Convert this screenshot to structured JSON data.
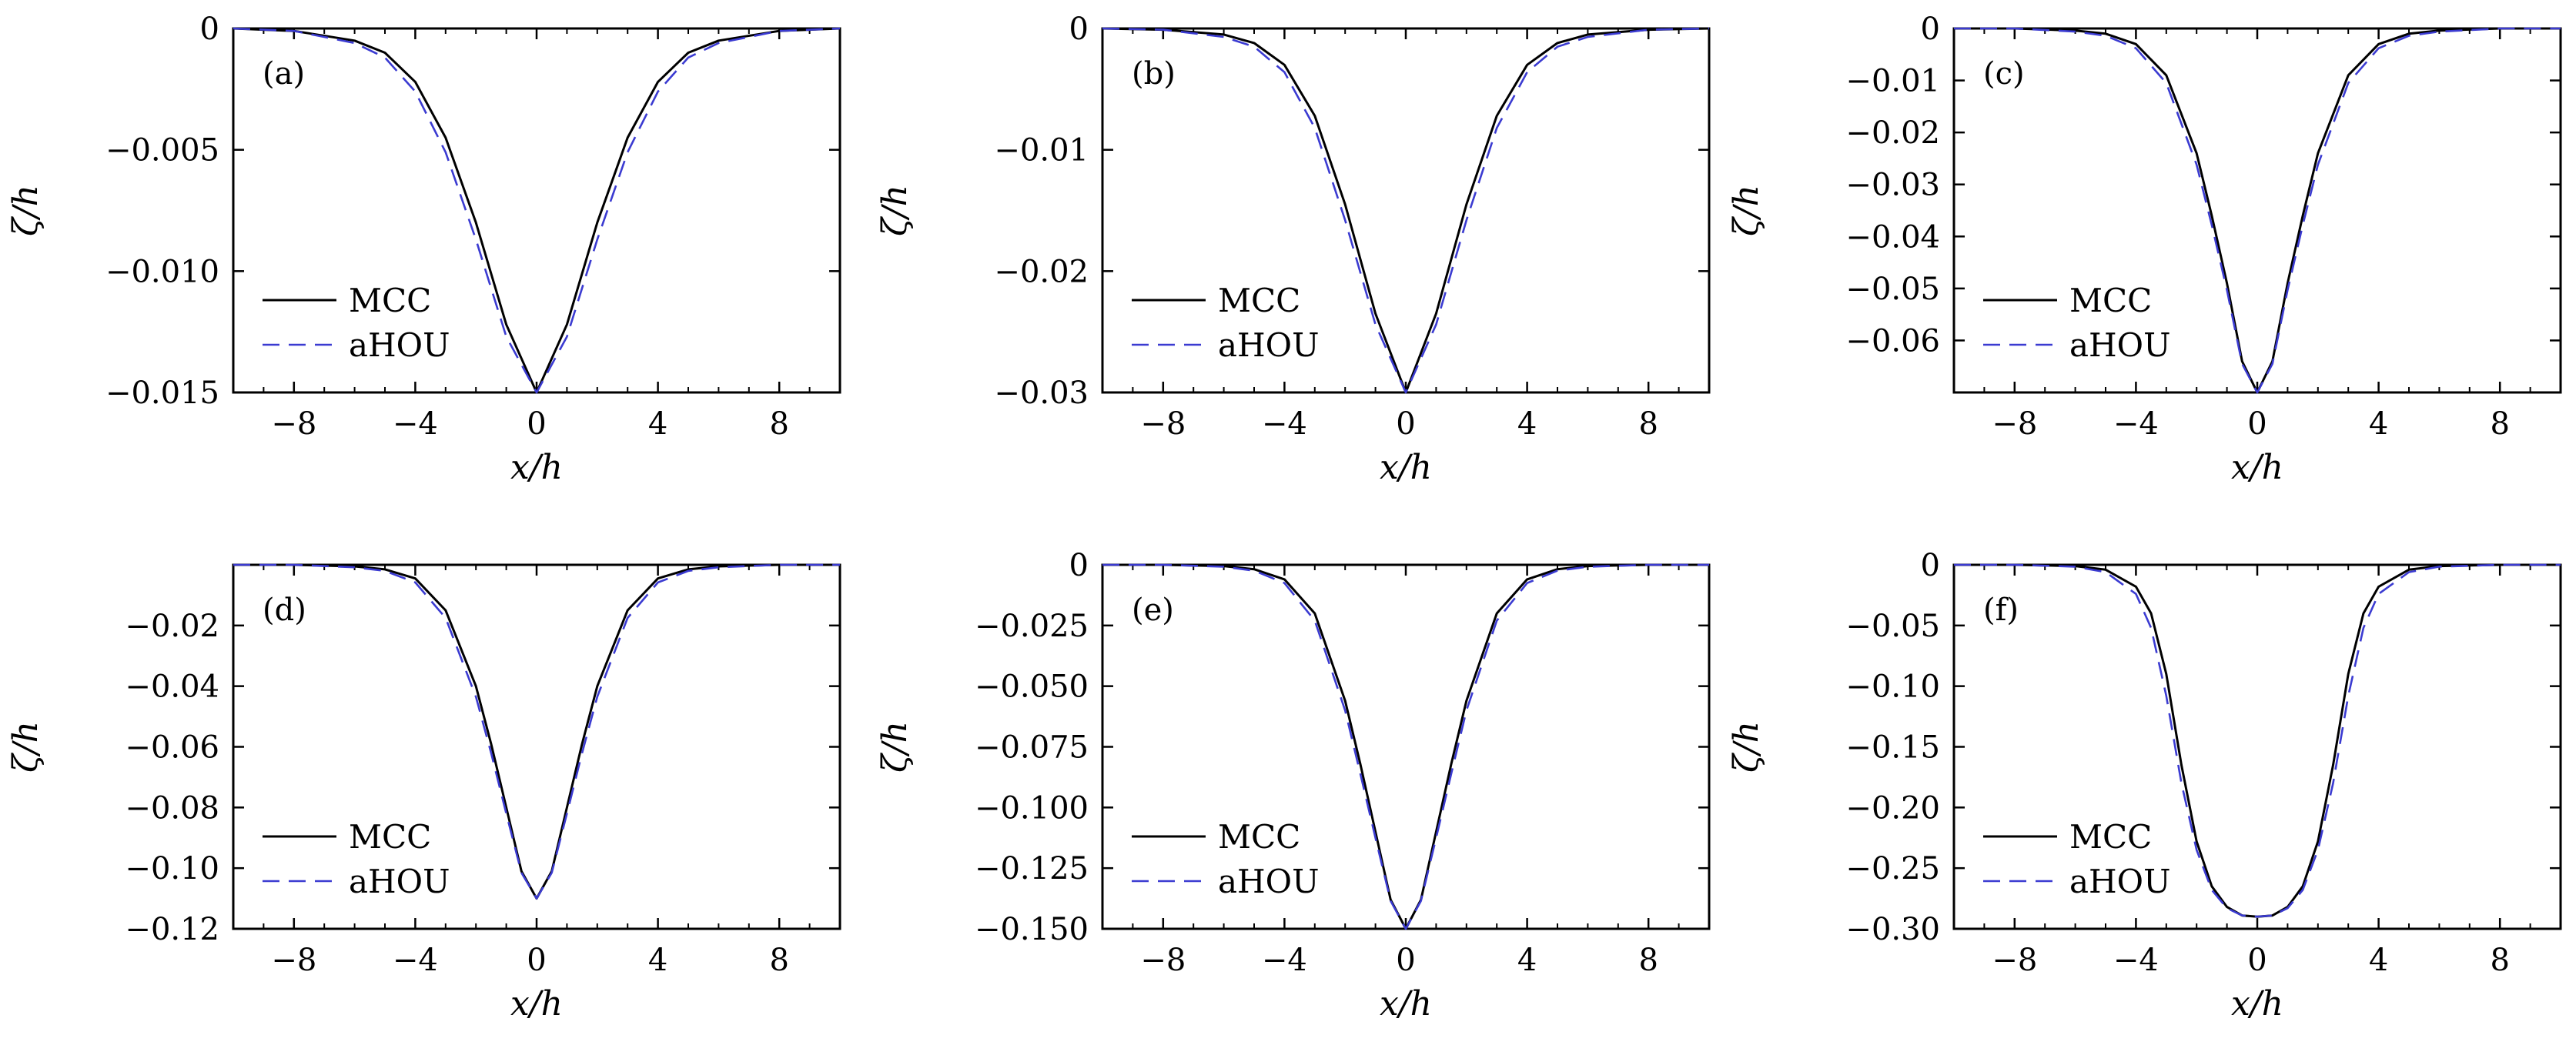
{
  "figure": {
    "legend": {
      "series": [
        {
          "name": "MCC",
          "color": "#000000",
          "dash": "solid"
        },
        {
          "name": "aHOU",
          "color": "#3b3bd1",
          "dash": "dashed"
        }
      ]
    }
  },
  "chart_data": [
    {
      "type": "line",
      "label": "(a)",
      "xlabel": "x/h",
      "ylabel": "ζ/h",
      "xlim": [
        -10,
        10
      ],
      "ylim": [
        -0.015,
        0
      ],
      "xticks": [
        -8,
        -4,
        0,
        4,
        8
      ],
      "xtick_labels": [
        "−8",
        "−4",
        "0",
        "4",
        "8"
      ],
      "yticks": [
        0,
        -0.005,
        -0.01,
        -0.015
      ],
      "ytick_labels": [
        "0",
        "−0.005",
        "−0.010",
        "−0.015"
      ],
      "grid": false,
      "legend_position": "lower-left",
      "series": [
        {
          "name": "MCC",
          "x": [
            -10,
            -8,
            -6,
            -5,
            -4,
            -3,
            -2,
            -1,
            0,
            1,
            2,
            3,
            4,
            5,
            6,
            8,
            10
          ],
          "y": [
            0,
            -0.0001,
            -0.0005,
            -0.001,
            -0.0022,
            -0.0045,
            -0.008,
            -0.0122,
            -0.015,
            -0.0122,
            -0.008,
            -0.0045,
            -0.0022,
            -0.001,
            -0.0005,
            -0.0001,
            0
          ]
        },
        {
          "name": "aHOU",
          "x": [
            -10,
            -8,
            -6,
            -5,
            -4,
            -3,
            -2,
            -1,
            0,
            1,
            2,
            3,
            4,
            5,
            6,
            8,
            10
          ],
          "y": [
            0,
            -0.0001,
            -0.0006,
            -0.0012,
            -0.0026,
            -0.0051,
            -0.0087,
            -0.0127,
            -0.015,
            -0.0127,
            -0.0087,
            -0.0051,
            -0.0026,
            -0.0012,
            -0.0006,
            -0.0001,
            0
          ]
        }
      ]
    },
    {
      "type": "line",
      "label": "(b)",
      "xlabel": "x/h",
      "ylabel": "ζ/h",
      "xlim": [
        -10,
        10
      ],
      "ylim": [
        -0.03,
        0
      ],
      "xticks": [
        -8,
        -4,
        0,
        4,
        8
      ],
      "xtick_labels": [
        "−8",
        "−4",
        "0",
        "4",
        "8"
      ],
      "yticks": [
        0,
        -0.01,
        -0.02,
        -0.03
      ],
      "ytick_labels": [
        "0",
        "−0.01",
        "−0.02",
        "−0.03"
      ],
      "grid": false,
      "legend_position": "lower-left",
      "series": [
        {
          "name": "MCC",
          "x": [
            -10,
            -8,
            -6,
            -5,
            -4,
            -3,
            -2,
            -1,
            0,
            1,
            2,
            3,
            4,
            5,
            6,
            8,
            10
          ],
          "y": [
            0,
            -0.0001,
            -0.0005,
            -0.0012,
            -0.003,
            -0.0072,
            -0.0145,
            -0.0235,
            -0.03,
            -0.0235,
            -0.0145,
            -0.0072,
            -0.003,
            -0.0012,
            -0.0005,
            -0.0001,
            0
          ]
        },
        {
          "name": "aHOU",
          "x": [
            -10,
            -8,
            -6,
            -5,
            -4,
            -3,
            -2,
            -1,
            0,
            1,
            2,
            3,
            4,
            5,
            6,
            8,
            10
          ],
          "y": [
            0,
            -0.0001,
            -0.0007,
            -0.0015,
            -0.0036,
            -0.0082,
            -0.0158,
            -0.0244,
            -0.03,
            -0.0244,
            -0.0158,
            -0.0082,
            -0.0036,
            -0.0015,
            -0.0007,
            -0.0001,
            0
          ]
        }
      ]
    },
    {
      "type": "line",
      "label": "(c)",
      "xlabel": "x/h",
      "ylabel": "ζ/h",
      "xlim": [
        -10,
        10
      ],
      "ylim": [
        -0.07,
        0
      ],
      "xticks": [
        -8,
        -4,
        0,
        4,
        8
      ],
      "xtick_labels": [
        "−8",
        "−4",
        "0",
        "4",
        "8"
      ],
      "yticks": [
        0,
        -0.01,
        -0.02,
        -0.03,
        -0.04,
        -0.05,
        -0.06
      ],
      "ytick_labels": [
        "0",
        "−0.01",
        "−0.02",
        "−0.03",
        "−0.04",
        "−0.05",
        "−0.06"
      ],
      "grid": false,
      "legend_position": "lower-left",
      "series": [
        {
          "name": "MCC",
          "x": [
            -10,
            -8,
            -6,
            -5,
            -4,
            -3,
            -2,
            -1.5,
            -1,
            -0.5,
            0,
            0.5,
            1,
            1.5,
            2,
            3,
            4,
            5,
            6,
            8,
            10
          ],
          "y": [
            0,
            0,
            -0.0004,
            -0.001,
            -0.003,
            -0.009,
            -0.024,
            -0.036,
            -0.049,
            -0.064,
            -0.07,
            -0.064,
            -0.049,
            -0.036,
            -0.024,
            -0.009,
            -0.003,
            -0.001,
            -0.0004,
            0,
            0
          ]
        },
        {
          "name": "aHOU",
          "x": [
            -10,
            -8,
            -6,
            -5,
            -4,
            -3,
            -2,
            -1.5,
            -1,
            -0.5,
            0,
            0.5,
            1,
            1.5,
            2,
            3,
            4,
            5,
            6,
            8,
            10
          ],
          "y": [
            0,
            0,
            -0.0006,
            -0.0014,
            -0.0038,
            -0.0105,
            -0.0262,
            -0.0378,
            -0.0503,
            -0.0645,
            -0.07,
            -0.0645,
            -0.0503,
            -0.0378,
            -0.0262,
            -0.0105,
            -0.0038,
            -0.0014,
            -0.0006,
            0,
            0
          ]
        }
      ]
    },
    {
      "type": "line",
      "label": "(d)",
      "xlabel": "x/h",
      "ylabel": "ζ/h",
      "xlim": [
        -10,
        10
      ],
      "ylim": [
        -0.12,
        0
      ],
      "xticks": [
        -8,
        -4,
        0,
        4,
        8
      ],
      "xtick_labels": [
        "−8",
        "−4",
        "0",
        "4",
        "8"
      ],
      "yticks": [
        -0.02,
        -0.04,
        -0.06,
        -0.08,
        -0.1,
        -0.12
      ],
      "ytick_labels": [
        "−0.02",
        "−0.04",
        "−0.06",
        "−0.08",
        "−0.10",
        "−0.12"
      ],
      "grid": false,
      "legend_position": "lower-left",
      "series": [
        {
          "name": "MCC",
          "x": [
            -10,
            -8,
            -6,
            -5,
            -4,
            -3,
            -2,
            -1.5,
            -1,
            -0.5,
            0,
            0.5,
            1,
            1.5,
            2,
            3,
            4,
            5,
            6,
            8,
            10
          ],
          "y": [
            0,
            0,
            -0.0005,
            -0.0015,
            -0.0045,
            -0.015,
            -0.04,
            -0.059,
            -0.08,
            -0.101,
            -0.11,
            -0.101,
            -0.08,
            -0.059,
            -0.04,
            -0.015,
            -0.0045,
            -0.0015,
            -0.0005,
            0,
            0
          ]
        },
        {
          "name": "aHOU",
          "x": [
            -10,
            -8,
            -6,
            -5,
            -4,
            -3,
            -2,
            -1.5,
            -1,
            -0.5,
            0,
            0.5,
            1,
            1.5,
            2,
            3,
            4,
            5,
            6,
            8,
            10
          ],
          "y": [
            0,
            0,
            -0.0008,
            -0.002,
            -0.0058,
            -0.0175,
            -0.0435,
            -0.062,
            -0.082,
            -0.1015,
            -0.11,
            -0.1015,
            -0.082,
            -0.062,
            -0.0435,
            -0.0175,
            -0.0058,
            -0.002,
            -0.0008,
            0,
            0
          ]
        }
      ]
    },
    {
      "type": "line",
      "label": "(e)",
      "xlabel": "x/h",
      "ylabel": "ζ/h",
      "xlim": [
        -10,
        10
      ],
      "ylim": [
        -0.15,
        0
      ],
      "xticks": [
        -8,
        -4,
        0,
        4,
        8
      ],
      "xtick_labels": [
        "−8",
        "−4",
        "0",
        "4",
        "8"
      ],
      "yticks": [
        0,
        -0.025,
        -0.05,
        -0.075,
        -0.1,
        -0.125,
        -0.15
      ],
      "ytick_labels": [
        "0",
        "−0.025",
        "−0.050",
        "−0.075",
        "−0.100",
        "−0.125",
        "−0.150"
      ],
      "grid": false,
      "legend_position": "lower-left",
      "series": [
        {
          "name": "MCC",
          "x": [
            -10,
            -8,
            -6,
            -5,
            -4,
            -3,
            -2,
            -1.5,
            -1,
            -0.5,
            0,
            0.5,
            1,
            1.5,
            2,
            3,
            4,
            5,
            6,
            8,
            10
          ],
          "y": [
            0,
            0,
            -0.0005,
            -0.0018,
            -0.006,
            -0.02,
            -0.056,
            -0.082,
            -0.11,
            -0.138,
            -0.15,
            -0.138,
            -0.11,
            -0.082,
            -0.056,
            -0.02,
            -0.006,
            -0.0018,
            -0.0005,
            0,
            0
          ]
        },
        {
          "name": "aHOU",
          "x": [
            -10,
            -8,
            -6,
            -5,
            -4,
            -3,
            -2,
            -1.5,
            -1,
            -0.5,
            0,
            0.5,
            1,
            1.5,
            2,
            3,
            4,
            5,
            6,
            8,
            10
          ],
          "y": [
            0,
            0,
            -0.0008,
            -0.0024,
            -0.0075,
            -0.023,
            -0.06,
            -0.086,
            -0.1125,
            -0.1385,
            -0.15,
            -0.1385,
            -0.1125,
            -0.086,
            -0.06,
            -0.023,
            -0.0075,
            -0.0024,
            -0.0008,
            0,
            0
          ]
        }
      ]
    },
    {
      "type": "line",
      "label": "(f)",
      "xlabel": "x/h",
      "ylabel": "ζ/h",
      "xlim": [
        -10,
        10
      ],
      "ylim": [
        -0.3,
        0
      ],
      "xticks": [
        -8,
        -4,
        0,
        4,
        8
      ],
      "xtick_labels": [
        "−8",
        "−4",
        "0",
        "4",
        "8"
      ],
      "yticks": [
        0,
        -0.05,
        -0.1,
        -0.15,
        -0.2,
        -0.25,
        -0.3
      ],
      "ytick_labels": [
        "0",
        "−0.05",
        "−0.10",
        "−0.15",
        "−0.20",
        "−0.25",
        "−0.30"
      ],
      "grid": false,
      "legend_position": "lower-left",
      "series": [
        {
          "name": "MCC",
          "x": [
            -10,
            -8,
            -6,
            -5,
            -4,
            -3.5,
            -3,
            -2.5,
            -2,
            -1.5,
            -1,
            -0.5,
            0,
            0.5,
            1,
            1.5,
            2,
            2.5,
            3,
            3.5,
            4,
            5,
            6,
            8,
            10
          ],
          "y": [
            0,
            0,
            -0.001,
            -0.004,
            -0.018,
            -0.04,
            -0.09,
            -0.165,
            -0.228,
            -0.265,
            -0.282,
            -0.289,
            -0.29,
            -0.289,
            -0.282,
            -0.265,
            -0.228,
            -0.165,
            -0.09,
            -0.04,
            -0.018,
            -0.004,
            -0.001,
            0,
            0
          ]
        },
        {
          "name": "aHOU",
          "x": [
            -10,
            -8,
            -6,
            -5,
            -4,
            -3.5,
            -3,
            -2.5,
            -2,
            -1.5,
            -1,
            -0.5,
            0,
            0.5,
            1,
            1.5,
            2,
            2.5,
            3,
            3.5,
            4,
            5,
            6,
            8,
            10
          ],
          "y": [
            0,
            0,
            -0.0015,
            -0.006,
            -0.024,
            -0.052,
            -0.108,
            -0.18,
            -0.235,
            -0.268,
            -0.283,
            -0.289,
            -0.29,
            -0.289,
            -0.283,
            -0.268,
            -0.235,
            -0.18,
            -0.108,
            -0.052,
            -0.024,
            -0.006,
            -0.0015,
            0,
            0
          ]
        }
      ]
    }
  ]
}
